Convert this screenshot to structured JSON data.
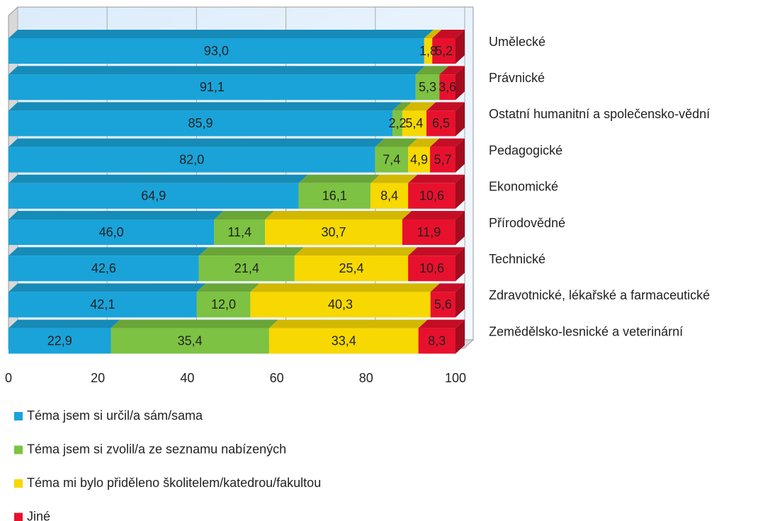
{
  "chart_data": {
    "type": "stacked_barh",
    "categories": [
      "Umělecké",
      "Právnické",
      "Ostatní humanitní a společensko-vědní",
      "Pedagogické",
      "Ekonomické",
      "Přírodovědné",
      "Technické",
      "Zdravotnické, lékařské a farmaceutické",
      "Zemědělsko-lesnické a veterinární"
    ],
    "series": [
      {
        "name": "Téma jsem si určil/a sám/sama",
        "color": "#1aa3d9",
        "values": [
          93.0,
          91.1,
          85.9,
          82.0,
          64.9,
          46.0,
          42.6,
          42.1,
          22.9
        ],
        "value_labels": [
          "93,0",
          "91,1",
          "85,9",
          "82,0",
          "64,9",
          "46,0",
          "42,6",
          "42,1",
          "22,9"
        ]
      },
      {
        "name": "Téma jsem si zvolil/a ze seznamu nabízených",
        "color": "#7dc242",
        "values": [
          null,
          5.3,
          2.2,
          7.4,
          16.1,
          11.4,
          21.4,
          12.0,
          35.4
        ],
        "value_labels": [
          null,
          "5,3",
          "2,2",
          "7,4",
          "16,1",
          "11,4",
          "21,4",
          "12,0",
          "35,4"
        ]
      },
      {
        "name": "Téma mi bylo přiděleno školitelem/katedrou/fakultou",
        "color": "#f7d800",
        "values": [
          1.8,
          null,
          5.4,
          4.9,
          8.4,
          30.7,
          25.4,
          40.3,
          33.4
        ],
        "value_labels": [
          "1,8",
          null,
          "5,4",
          "4,9",
          "8,4",
          "30,7",
          "25,4",
          "40,3",
          "33,4"
        ]
      },
      {
        "name": "Jiné",
        "color": "#e8112d",
        "values": [
          5.2,
          3.6,
          6.5,
          5.7,
          10.6,
          11.9,
          10.6,
          5.6,
          8.3
        ],
        "value_labels": [
          "5,2",
          "3,6",
          "6,5",
          "5,7",
          "10,6",
          "11,9",
          "10,6",
          "5,6",
          "8,3"
        ]
      }
    ],
    "xlim": [
      0,
      100
    ],
    "xticks": [
      0,
      20,
      40,
      60,
      80,
      100
    ],
    "grid": true
  }
}
